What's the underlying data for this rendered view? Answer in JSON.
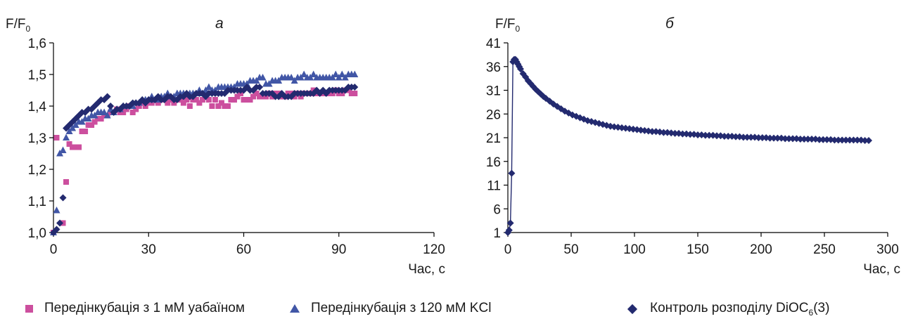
{
  "chart_data": [
    {
      "type": "scatter",
      "panel_letter": "а",
      "y_label_main": "F/F",
      "y_label_sub": "0",
      "x_label": "Час, с",
      "xlim": [
        0,
        120
      ],
      "ylim": [
        1.0,
        1.6
      ],
      "x_ticks": [
        0,
        30,
        60,
        90,
        120
      ],
      "y_ticks": [
        1.0,
        1.1,
        1.2,
        1.3,
        1.4,
        1.5,
        1.6
      ],
      "y_tick_labels": [
        "1,0",
        "1,1",
        "1,2",
        "1,3",
        "1,4",
        "1,5",
        "1,6"
      ],
      "series": [
        {
          "name": "Передінкубація з 1 мМ уабаїном",
          "marker": "square",
          "color": "#cc4f9e",
          "x": [
            0,
            1,
            3,
            4,
            5,
            6,
            7,
            8,
            9,
            10,
            11,
            12,
            13,
            14,
            15,
            16,
            17,
            18,
            19,
            20,
            21,
            22,
            23,
            24,
            25,
            26,
            27,
            28,
            29,
            30,
            31,
            32,
            33,
            34,
            35,
            36,
            37,
            38,
            39,
            40,
            41,
            42,
            43,
            44,
            45,
            46,
            47,
            48,
            49,
            50,
            51,
            52,
            53,
            54,
            55,
            56,
            57,
            58,
            59,
            60,
            61,
            62,
            63,
            64,
            65,
            66,
            67,
            68,
            69,
            70,
            71,
            72,
            73,
            74,
            75,
            76,
            77,
            78,
            79,
            80,
            81,
            82,
            83,
            84,
            85,
            86,
            87,
            88,
            89,
            90,
            91,
            92,
            93,
            94,
            95
          ],
          "y": [
            1.0,
            1.3,
            1.03,
            1.16,
            1.28,
            1.27,
            1.27,
            1.27,
            1.32,
            1.32,
            1.34,
            1.34,
            1.35,
            1.36,
            1.36,
            1.37,
            1.37,
            1.38,
            1.38,
            1.39,
            1.38,
            1.38,
            1.39,
            1.4,
            1.38,
            1.39,
            1.4,
            1.41,
            1.4,
            1.41,
            1.41,
            1.42,
            1.41,
            1.42,
            1.42,
            1.41,
            1.42,
            1.41,
            1.42,
            1.42,
            1.41,
            1.42,
            1.4,
            1.42,
            1.42,
            1.41,
            1.42,
            1.43,
            1.42,
            1.4,
            1.42,
            1.4,
            1.41,
            1.4,
            1.4,
            1.42,
            1.42,
            1.43,
            1.44,
            1.42,
            1.42,
            1.42,
            1.43,
            1.44,
            1.43,
            1.43,
            1.43,
            1.44,
            1.43,
            1.44,
            1.44,
            1.43,
            1.43,
            1.44,
            1.44,
            1.43,
            1.44,
            1.43,
            1.44,
            1.44,
            1.44,
            1.45,
            1.44,
            1.44,
            1.44,
            1.44,
            1.44,
            1.44,
            1.45,
            1.44,
            1.44,
            1.45,
            1.45,
            1.44,
            1.44
          ]
        },
        {
          "name": "Передінкубація з 120 мМ KCl",
          "marker": "triangle",
          "color": "#4156a6",
          "x": [
            0,
            1,
            2,
            3,
            4,
            5,
            6,
            7,
            8,
            9,
            10,
            11,
            12,
            13,
            14,
            15,
            16,
            17,
            18,
            19,
            20,
            21,
            22,
            23,
            24,
            25,
            26,
            27,
            28,
            29,
            30,
            31,
            32,
            33,
            34,
            35,
            36,
            37,
            38,
            39,
            40,
            41,
            42,
            43,
            44,
            45,
            46,
            47,
            48,
            49,
            50,
            51,
            52,
            53,
            54,
            55,
            56,
            57,
            58,
            59,
            60,
            61,
            62,
            63,
            64,
            65,
            66,
            67,
            68,
            69,
            70,
            71,
            72,
            73,
            74,
            75,
            76,
            77,
            78,
            79,
            80,
            81,
            82,
            83,
            84,
            85,
            86,
            87,
            88,
            89,
            90,
            91,
            92,
            93,
            94,
            95
          ],
          "y": [
            1.0,
            1.07,
            1.25,
            1.26,
            1.3,
            1.32,
            1.33,
            1.34,
            1.35,
            1.35,
            1.36,
            1.36,
            1.37,
            1.37,
            1.38,
            1.38,
            1.38,
            1.37,
            1.39,
            1.38,
            1.39,
            1.39,
            1.4,
            1.4,
            1.4,
            1.4,
            1.41,
            1.41,
            1.42,
            1.42,
            1.42,
            1.43,
            1.42,
            1.42,
            1.43,
            1.43,
            1.44,
            1.43,
            1.43,
            1.44,
            1.44,
            1.44,
            1.44,
            1.44,
            1.44,
            1.44,
            1.45,
            1.44,
            1.45,
            1.46,
            1.45,
            1.45,
            1.46,
            1.46,
            1.46,
            1.46,
            1.46,
            1.46,
            1.47,
            1.47,
            1.47,
            1.47,
            1.48,
            1.48,
            1.48,
            1.49,
            1.49,
            1.47,
            1.47,
            1.48,
            1.48,
            1.48,
            1.49,
            1.49,
            1.49,
            1.49,
            1.48,
            1.49,
            1.49,
            1.5,
            1.49,
            1.49,
            1.5,
            1.49,
            1.49,
            1.49,
            1.49,
            1.49,
            1.49,
            1.5,
            1.49,
            1.5,
            1.49,
            1.5,
            1.5,
            1.5
          ]
        },
        {
          "name": "Контроль розподілу DiOC",
          "name_sub": "6",
          "name_suffix": "(3)",
          "marker": "diamond",
          "color": "#232a6f",
          "x": [
            0,
            1,
            2,
            3,
            4,
            5,
            6,
            7,
            8,
            9,
            10,
            11,
            12,
            13,
            14,
            15,
            16,
            17,
            18,
            19,
            20,
            21,
            22,
            23,
            24,
            25,
            26,
            27,
            28,
            29,
            30,
            31,
            32,
            33,
            34,
            35,
            36,
            37,
            38,
            39,
            40,
            41,
            42,
            43,
            44,
            45,
            46,
            47,
            48,
            49,
            50,
            51,
            52,
            53,
            54,
            55,
            56,
            57,
            58,
            59,
            60,
            61,
            62,
            63,
            64,
            65,
            66,
            67,
            68,
            69,
            70,
            71,
            72,
            73,
            74,
            75,
            76,
            77,
            78,
            79,
            80,
            81,
            82,
            83,
            84,
            85,
            86,
            87,
            88,
            89,
            90,
            91,
            92,
            93,
            94,
            95
          ],
          "y": [
            1.0,
            1.01,
            1.03,
            1.11,
            1.33,
            1.34,
            1.35,
            1.36,
            1.37,
            1.38,
            1.38,
            1.39,
            1.39,
            1.4,
            1.41,
            1.42,
            1.42,
            1.43,
            1.4,
            1.38,
            1.39,
            1.39,
            1.4,
            1.4,
            1.4,
            1.41,
            1.41,
            1.41,
            1.42,
            1.41,
            1.42,
            1.42,
            1.42,
            1.43,
            1.42,
            1.42,
            1.43,
            1.43,
            1.42,
            1.42,
            1.43,
            1.43,
            1.44,
            1.43,
            1.43,
            1.44,
            1.44,
            1.44,
            1.43,
            1.44,
            1.44,
            1.44,
            1.44,
            1.44,
            1.44,
            1.45,
            1.45,
            1.45,
            1.45,
            1.45,
            1.45,
            1.46,
            1.45,
            1.45,
            1.46,
            1.46,
            1.44,
            1.44,
            1.44,
            1.44,
            1.43,
            1.43,
            1.44,
            1.43,
            1.43,
            1.43,
            1.44,
            1.44,
            1.44,
            1.44,
            1.44,
            1.44,
            1.44,
            1.45,
            1.44,
            1.45,
            1.44,
            1.45,
            1.45,
            1.45,
            1.45,
            1.45,
            1.45,
            1.46,
            1.46,
            1.46
          ]
        }
      ]
    },
    {
      "type": "line",
      "panel_letter": "б",
      "y_label_main": "F/F",
      "y_label_sub": "0",
      "x_label": "Час, с",
      "xlim": [
        0,
        300
      ],
      "ylim": [
        1,
        41
      ],
      "x_ticks": [
        0,
        50,
        100,
        150,
        200,
        250,
        300
      ],
      "y_ticks": [
        1,
        6,
        11,
        16,
        21,
        26,
        31,
        36,
        41
      ],
      "series": [
        {
          "name": "Контроль розподілу DiOC",
          "name_sub": "6",
          "name_suffix": "(3)",
          "marker": "diamond",
          "color": "#232a6f",
          "x": [
            0,
            1,
            2,
            3,
            4,
            5,
            6,
            7,
            8,
            9,
            10,
            12,
            14,
            16,
            18,
            20,
            22,
            24,
            26,
            28,
            30,
            33,
            36,
            39,
            42,
            45,
            48,
            51,
            54,
            57,
            60,
            63,
            66,
            69,
            72,
            75,
            78,
            81,
            84,
            87,
            90,
            93,
            96,
            99,
            102,
            105,
            108,
            111,
            114,
            117,
            120,
            123,
            126,
            129,
            132,
            135,
            138,
            141,
            144,
            147,
            150,
            153,
            156,
            159,
            162,
            165,
            168,
            171,
            174,
            177,
            180,
            183,
            186,
            189,
            192,
            195,
            198,
            201,
            204,
            207,
            210,
            213,
            216,
            219,
            222,
            225,
            228,
            231,
            234,
            237,
            240,
            243,
            246,
            249,
            252,
            255,
            258,
            261,
            264,
            267,
            270,
            273,
            276,
            279,
            282,
            285
          ],
          "y": [
            1,
            1.5,
            3,
            13.5,
            37,
            37.5,
            37.5,
            37,
            36.5,
            36,
            35.5,
            34.5,
            33.8,
            33,
            32.4,
            31.8,
            31.2,
            30.7,
            30.2,
            29.7,
            29.3,
            28.7,
            28.1,
            27.6,
            27.1,
            26.6,
            26.2,
            25.8,
            25.5,
            25.2,
            24.9,
            24.6,
            24.4,
            24.2,
            24,
            23.8,
            23.6,
            23.4,
            23.3,
            23.2,
            23.1,
            23,
            22.9,
            22.8,
            22.7,
            22.6,
            22.5,
            22.4,
            22.3,
            22.3,
            22.2,
            22.1,
            22.1,
            22,
            21.9,
            21.9,
            21.8,
            21.8,
            21.7,
            21.7,
            21.6,
            21.6,
            21.5,
            21.5,
            21.5,
            21.4,
            21.4,
            21.3,
            21.3,
            21.3,
            21.2,
            21.2,
            21.1,
            21.1,
            21.1,
            21.1,
            21,
            21,
            21,
            20.9,
            20.9,
            20.9,
            20.9,
            20.8,
            20.8,
            20.8,
            20.8,
            20.7,
            20.7,
            20.7,
            20.7,
            20.7,
            20.6,
            20.6,
            20.6,
            20.6,
            20.5,
            20.5,
            20.5,
            20.5,
            20.5,
            20.5,
            20.5,
            20.5,
            20.4,
            20.4
          ]
        }
      ]
    }
  ],
  "legend": [
    {
      "label": "Передінкубація з 1 мМ уабаїном",
      "marker": "square",
      "color": "#cc4f9e"
    },
    {
      "label": "Передінкубація з 120 мМ KCl",
      "marker": "triangle",
      "color": "#4156a6"
    },
    {
      "label": "Контроль розподілу DiOC",
      "sub": "6",
      "suffix": "(3)",
      "marker": "diamond",
      "color": "#232a6f"
    }
  ]
}
